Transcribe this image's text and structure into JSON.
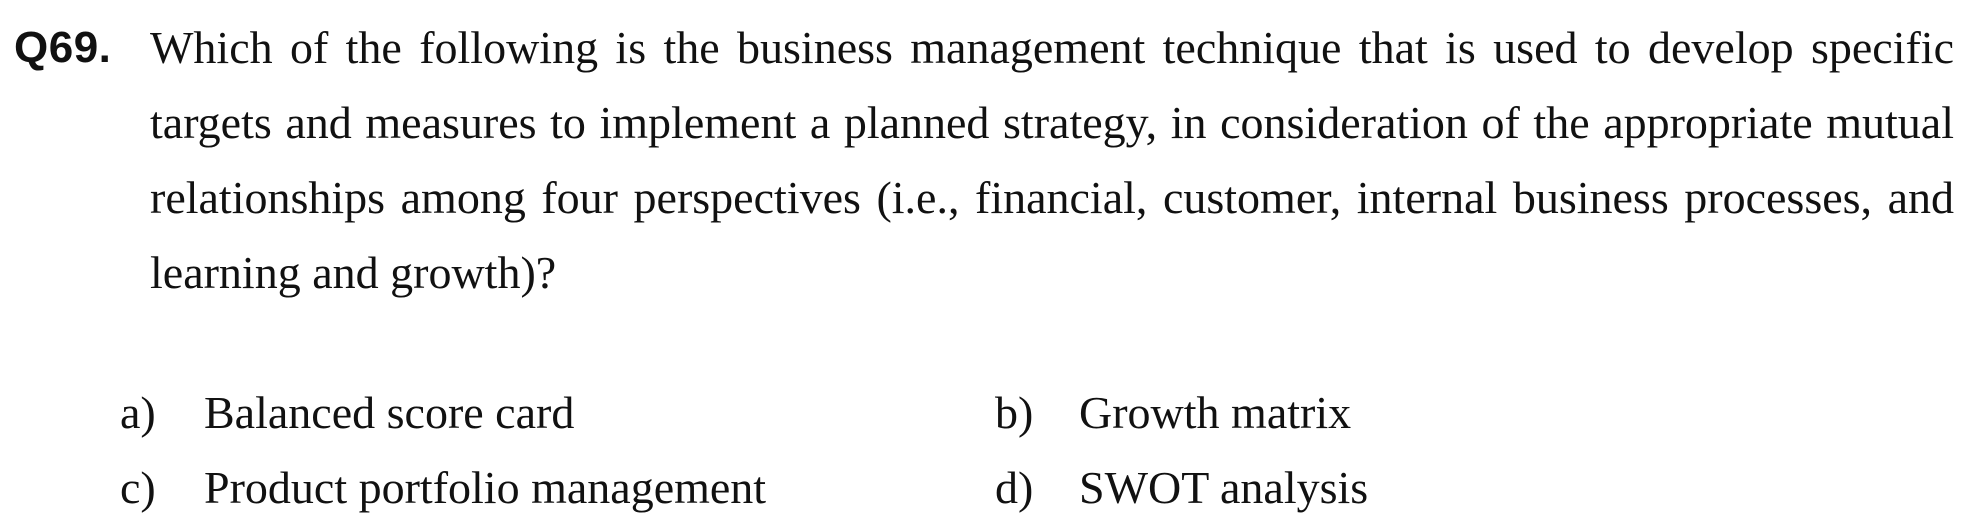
{
  "question": {
    "number": "Q69.",
    "text": "Which of the following is the business management technique that is used to develop specific targets and measures to implement a planned strategy, in consideration of the appropriate mutual relationships among four perspectives (i.e., financial, customer, internal business processes, and learning and growth)?"
  },
  "options": [
    {
      "letter": "a)",
      "text": "Balanced score card"
    },
    {
      "letter": "b)",
      "text": "Growth matrix"
    },
    {
      "letter": "c)",
      "text": "Product portfolio management"
    },
    {
      "letter": "d)",
      "text": "SWOT analysis"
    }
  ]
}
